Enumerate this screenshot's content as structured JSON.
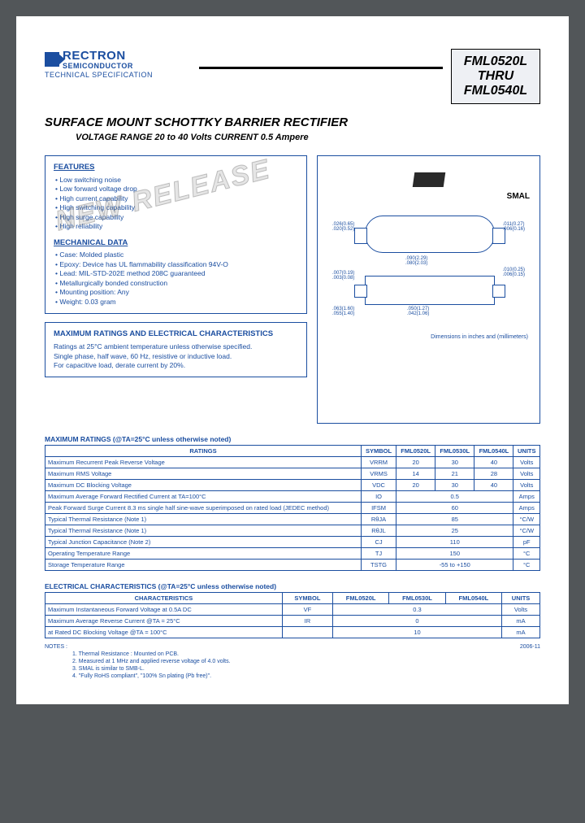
{
  "logo": {
    "name": "RECTRON",
    "sub": "SEMICONDUCTOR",
    "spec": "TECHNICAL SPECIFICATION"
  },
  "partbox": {
    "l1": "FML0520L",
    "l2": "THRU",
    "l3": "FML0540L"
  },
  "title": "SURFACE MOUNT SCHOTTKY BARRIER RECTIFIER",
  "subtitle": "VOLTAGE RANGE 20 to 40 Volts   CURRENT 0.5 Ampere",
  "watermark": "NEW RELEASE",
  "features": {
    "h": "FEATURES",
    "items": [
      "Low switching noise",
      "Low forward voltage drop",
      "High current capability",
      "High switching capability",
      "High surge capability",
      "High reliability"
    ]
  },
  "mech": {
    "h": "MECHANICAL DATA",
    "items": [
      "Case: Molded plastic",
      "Epoxy: Device has UL flammability classification 94V-O",
      "Lead: MIL-STD-202E method 208C guaranteed",
      "Metallurgically bonded construction",
      "Mounting position: Any",
      "Weight: 0.03 gram"
    ]
  },
  "maxchar": {
    "h": "MAXIMUM RATINGS AND ELECTRICAL CHARACTERISTICS",
    "lines": [
      "Ratings at 25°C ambient temperature unless otherwise specified.",
      "Single phase, half wave, 60 Hz, resistive or inductive load.",
      "For capacitive load, derate current by 20%."
    ]
  },
  "pkg_label": "SMAL",
  "dim_note": "Dimensions in inches and (millimeters)",
  "t1": {
    "title": "MAXIMUM RATINGS (@TA=25°C unless otherwise noted)",
    "head": [
      "RATINGS",
      "SYMBOL",
      "FML0520L",
      "FML0530L",
      "FML0540L",
      "UNITS"
    ],
    "rows": [
      [
        "Maximum Recurrent Peak Reverse Voltage",
        "VRRM",
        "20",
        "30",
        "40",
        "Volts"
      ],
      [
        "Maximum RMS Voltage",
        "VRMS",
        "14",
        "21",
        "28",
        "Volts"
      ],
      [
        "Maximum DC Blocking Voltage",
        "VDC",
        "20",
        "30",
        "40",
        "Volts"
      ],
      [
        "Maximum Average Forward Rectified Current at TA=100°C",
        "IO",
        "",
        "0.5",
        "",
        "Amps"
      ],
      [
        "Peak Forward Surge Current 8.3 ms single half sine-wave superimposed on rated load (JEDEC method)",
        "IFSM",
        "",
        "60",
        "",
        "Amps"
      ],
      [
        "Typical Thermal Resistance (Note 1)",
        "RθJA",
        "",
        "85",
        "",
        "°C/W"
      ],
      [
        "Typical Thermal Resistance (Note 1)",
        "RθJL",
        "",
        "25",
        "",
        "°C/W"
      ],
      [
        "Typical Junction Capacitance (Note 2)",
        "CJ",
        "",
        "110",
        "",
        "pF"
      ],
      [
        "Operating Temperature Range",
        "TJ",
        "",
        "150",
        "",
        "°C"
      ],
      [
        "Storage Temperature Range",
        "TSTG",
        "",
        "-55 to +150",
        "",
        "°C"
      ]
    ]
  },
  "t2": {
    "title": "ELECTRICAL CHARACTERISTICS (@TA=25°C unless otherwise noted)",
    "head": [
      "CHARACTERISTICS",
      "SYMBOL",
      "FML0520L",
      "FML0530L",
      "FML0540L",
      "UNITS"
    ],
    "rows": [
      [
        "Maximum Instantaneous Forward Voltage at 0.5A DC",
        "VF",
        "",
        "0.3",
        "",
        "Volts"
      ],
      [
        "Maximum Average Reverse Current  @TA = 25°C",
        "IR",
        "",
        "0",
        "",
        "mA"
      ],
      [
        "at Rated DC Blocking Voltage  @TA = 100°C",
        "",
        "",
        "10",
        "",
        "mA"
      ]
    ]
  },
  "notes": {
    "label": "NOTES :",
    "items": [
      "1. Thermal Resistance : Mounted on PCB.",
      "2. Measured at 1 MHz and applied reverse voltage of 4.0 volts.",
      "3. SMAL is similar to SMB-L.",
      "4. \"Fully RoHS compliant\", \"100% Sn plating (Pb free)\"."
    ],
    "date": "2006-11"
  },
  "colors": {
    "brand": "#1b4ea0",
    "pagebg": "#ffffff",
    "outerbg": "#525659"
  }
}
